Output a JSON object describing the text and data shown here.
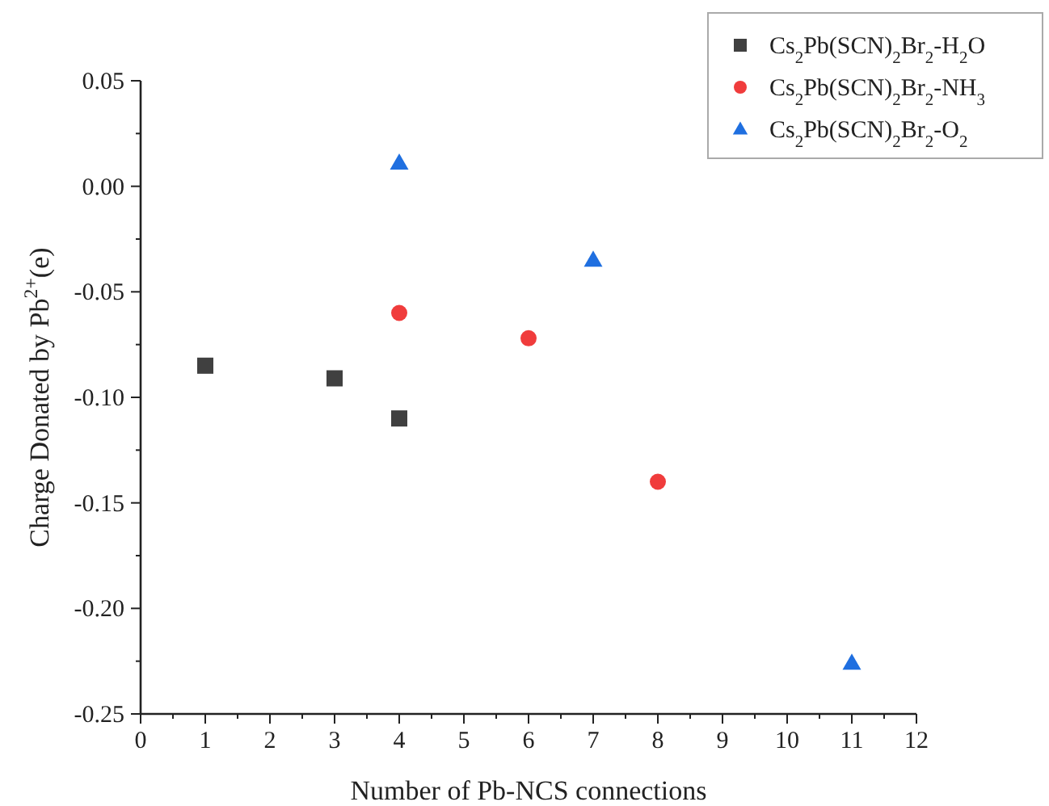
{
  "chart_data": {
    "type": "scatter",
    "xlabel": "Number of Pb-NCS connections",
    "ylabel": "Charge Donated by Pb$^{2+}$(e)",
    "xlim": [
      0,
      12
    ],
    "xticks": [
      0,
      {
        "value": 0.5,
        "label": null
      },
      1,
      {
        "value": 1.5,
        "label": null
      },
      2,
      {
        "value": 2.5,
        "label": null
      },
      3,
      {
        "value": 3.5,
        "label": null
      },
      4,
      {
        "value": 4.5,
        "label": null
      },
      5,
      {
        "value": 5.5,
        "label": null
      },
      6,
      {
        "value": 6.5,
        "label": null
      },
      7,
      {
        "value": 7.5,
        "label": null
      },
      8,
      {
        "value": 8.5,
        "label": null
      },
      9,
      {
        "value": 9.5,
        "label": null
      },
      10,
      {
        "value": 10.5,
        "label": null
      },
      11,
      {
        "value": 11.5,
        "label": null
      },
      12
    ],
    "ylim": [
      -0.25,
      0.05
    ],
    "yticks": [
      {
        "value": -0.25,
        "label": "-0.25"
      },
      {
        "value": -0.225,
        "label": null
      },
      {
        "value": -0.2,
        "label": "-0.20"
      },
      {
        "value": -0.175,
        "label": null
      },
      {
        "value": -0.15,
        "label": "-0.15"
      },
      {
        "value": -0.125,
        "label": null
      },
      {
        "value": -0.1,
        "label": "-0.10"
      },
      {
        "value": -0.075,
        "label": null
      },
      {
        "value": -0.05,
        "label": "-0.05"
      },
      {
        "value": -0.025,
        "label": null
      },
      {
        "value": 0,
        "label": "0.00"
      },
      {
        "value": 0.025,
        "label": null
      },
      {
        "value": 0.05,
        "label": "0.05"
      }
    ],
    "grid": false,
    "legend": "top right",
    "series": [
      {
        "name": "Cs$_{2}$Pb(SCN)$_{2}$Br$_{2}$-H$_{2}$O",
        "color": "#404040",
        "marker": "square",
        "x": [
          1,
          3,
          4
        ],
        "values": [
          -0.085,
          -0.091,
          -0.11
        ]
      },
      {
        "name": "Cs$_{2}$Pb(SCN)$_{2}$Br$_{2}$-NH$_{3}$",
        "color": "#f03c3c",
        "marker": "circle",
        "x": [
          4,
          6,
          8
        ],
        "values": [
          -0.06,
          -0.072,
          -0.14
        ]
      },
      {
        "name": "Cs$_{2}$Pb(SCN)$_{2}$Br$_{2}$-O$_{2}$",
        "color": "#1f6fe0",
        "marker": "triangle",
        "x": [
          4,
          7,
          11
        ],
        "values": [
          0.011,
          -0.035,
          -0.226
        ]
      }
    ]
  }
}
